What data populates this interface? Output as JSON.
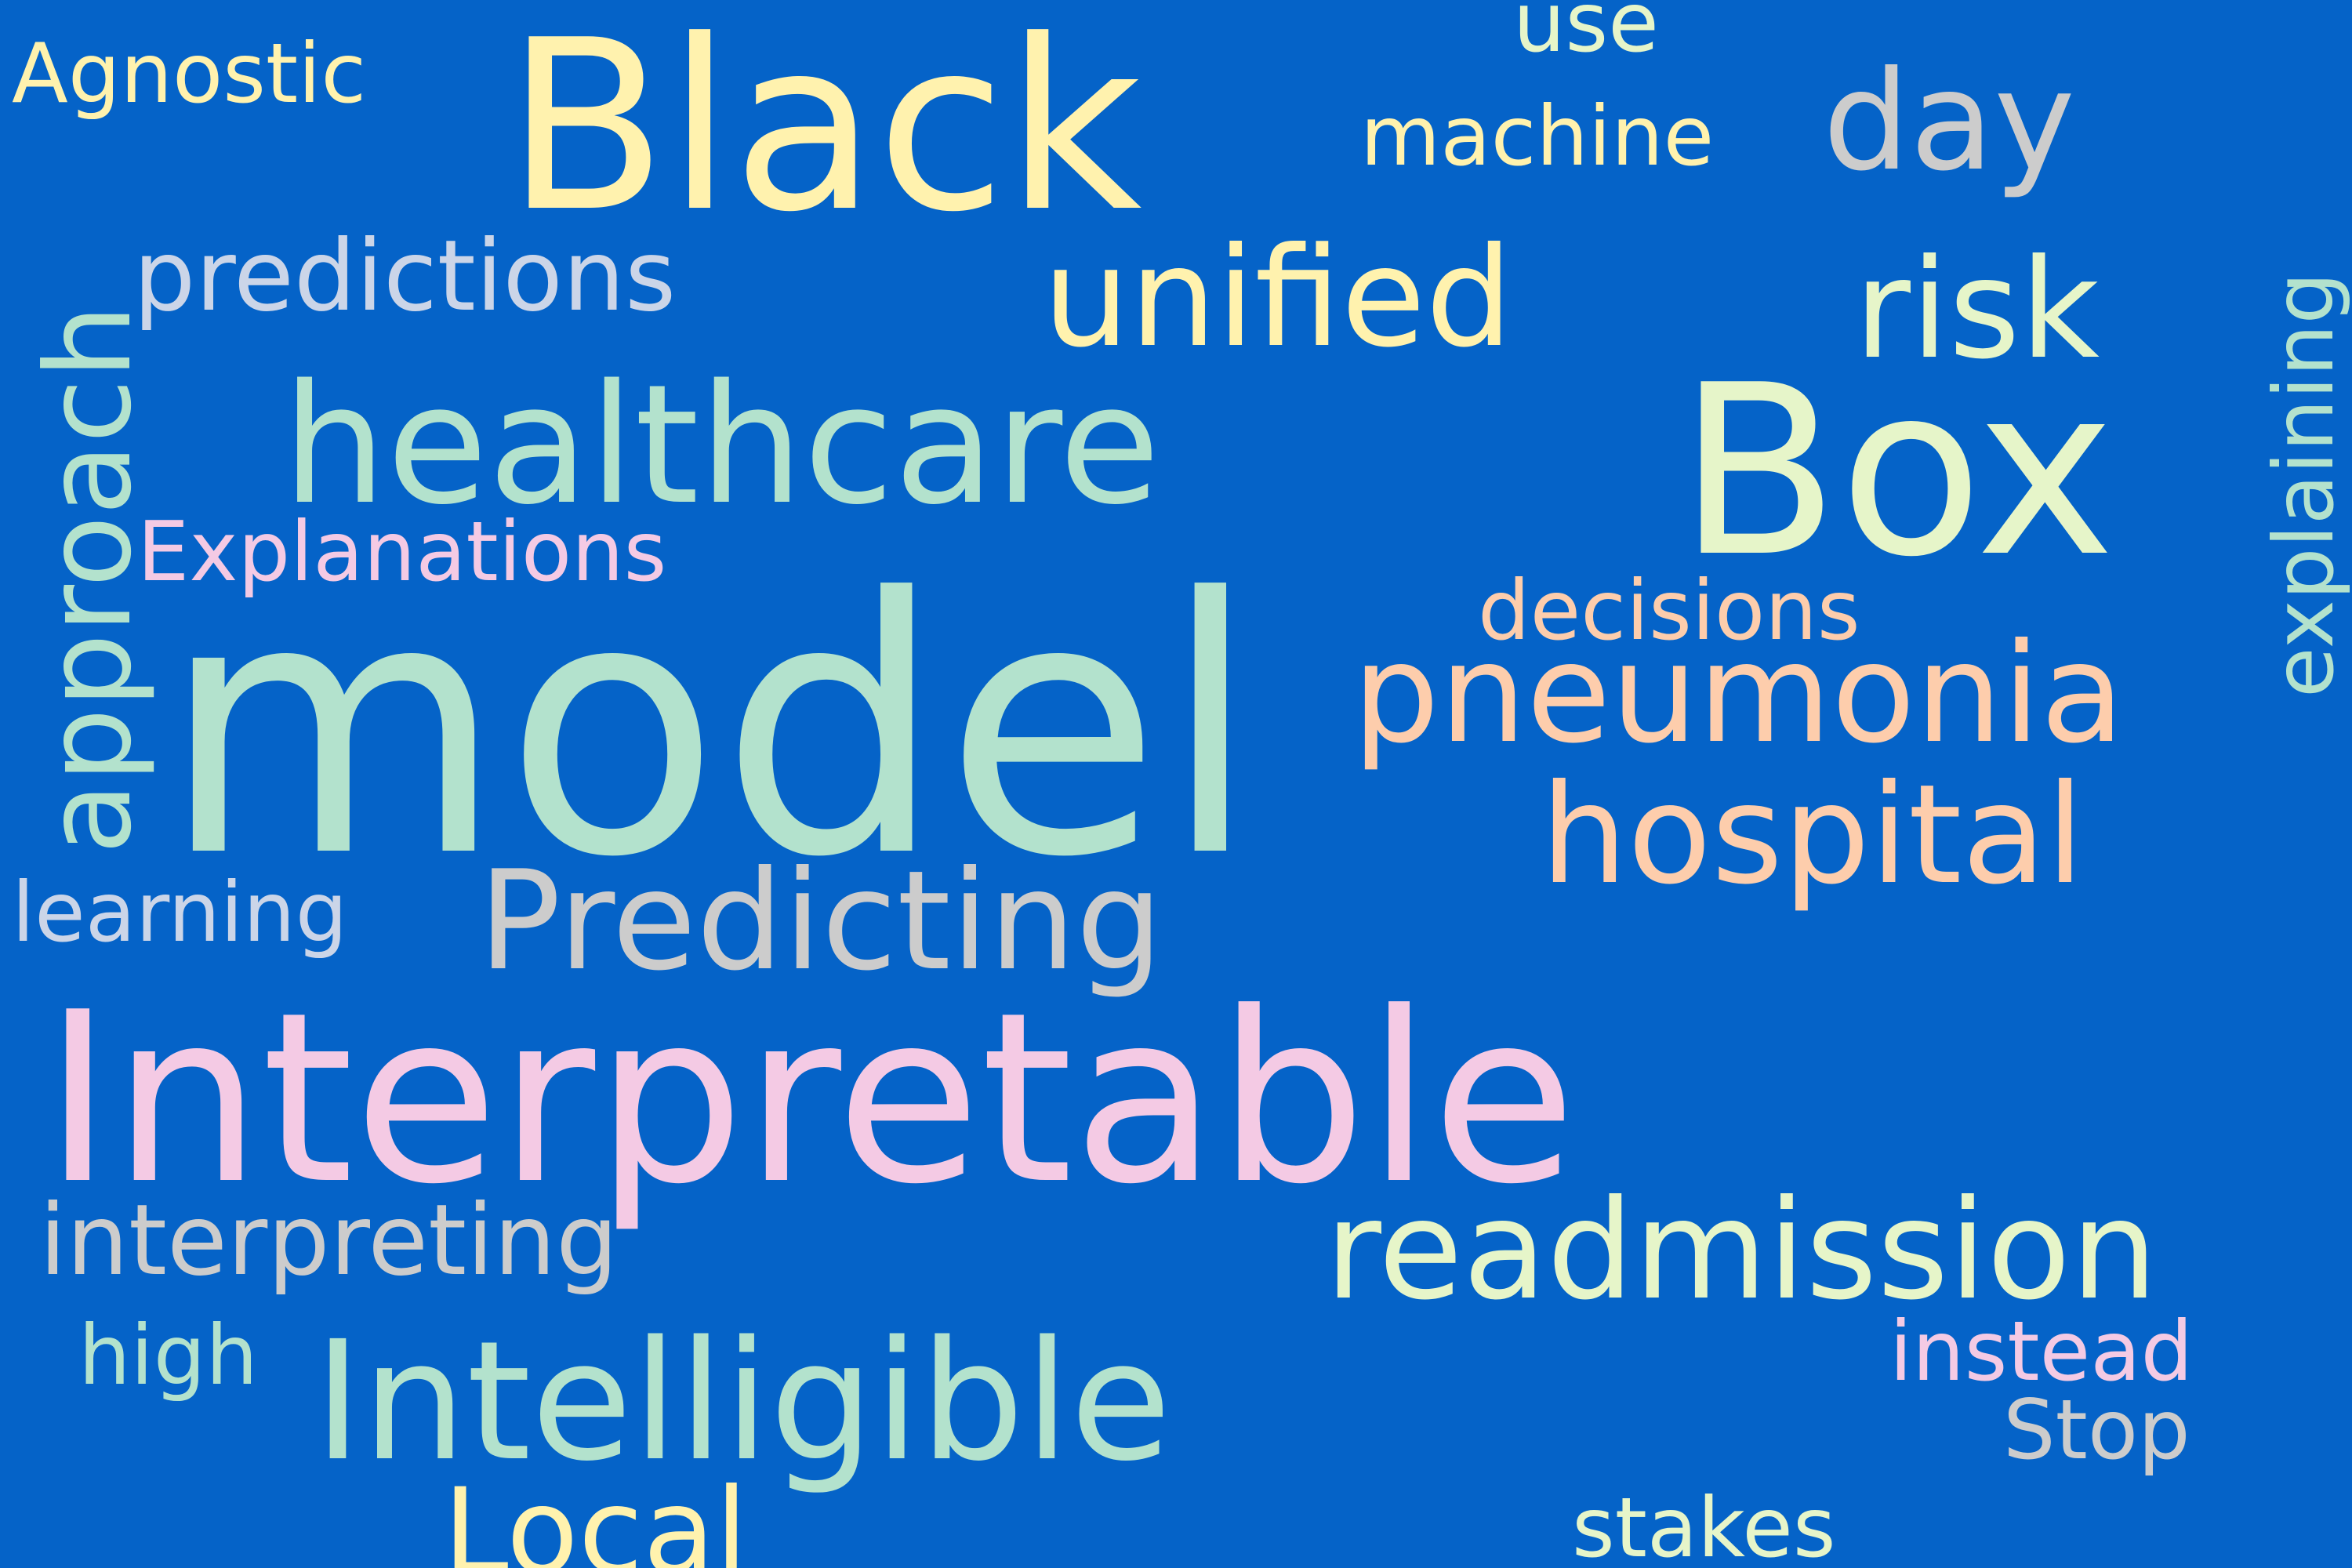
{
  "background_color": "#0563c8",
  "words": [
    {
      "text": "model",
      "color": "#b3e2cd"
    },
    {
      "text": "Interpretable",
      "color": "#f4cae4"
    },
    {
      "text": "Black",
      "color": "#fff2ae"
    },
    {
      "text": "Box",
      "color": "#e6f5c9"
    },
    {
      "text": "healthcare",
      "color": "#b3e2cd"
    },
    {
      "text": "Intelligible",
      "color": "#b3e2cd"
    },
    {
      "text": "Predicting",
      "color": "#cccccc"
    },
    {
      "text": "pneumonia",
      "color": "#fdcdac"
    },
    {
      "text": "hospital",
      "color": "#fdcdac"
    },
    {
      "text": "readmission",
      "color": "#e6f5c9"
    },
    {
      "text": "risk",
      "color": "#e6f5c9"
    },
    {
      "text": "unified",
      "color": "#fff2ae"
    },
    {
      "text": "day",
      "color": "#cccccc"
    },
    {
      "text": "approach",
      "color": "#b3e2cd"
    },
    {
      "text": "predictions",
      "color": "#cbd5e8"
    },
    {
      "text": "interpreting",
      "color": "#cccccc"
    },
    {
      "text": "Explanations",
      "color": "#f4cae4"
    },
    {
      "text": "decisions",
      "color": "#fdcdac"
    },
    {
      "text": "explaining",
      "color": "#b3e2cd"
    },
    {
      "text": "machine",
      "color": "#fff2ae"
    },
    {
      "text": "Agnostic",
      "color": "#fff2ae"
    },
    {
      "text": "use",
      "color": "#e6f5c9"
    },
    {
      "text": "learning",
      "color": "#cbd5e8"
    },
    {
      "text": "high",
      "color": "#b3e2cd"
    },
    {
      "text": "instead",
      "color": "#f4cae4"
    },
    {
      "text": "Stop",
      "color": "#cccccc"
    },
    {
      "text": "Local",
      "color": "#fff2ae"
    },
    {
      "text": "stakes",
      "color": "#e6f5c9"
    }
  ]
}
